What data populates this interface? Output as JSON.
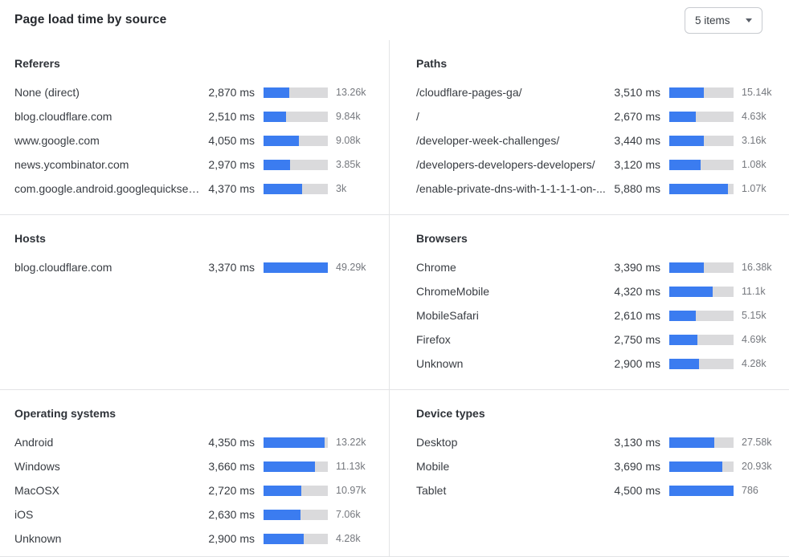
{
  "header": {
    "title": "Page load time by source"
  },
  "toolbar": {
    "items_dropdown": {
      "value": "5 items",
      "icon": "chevron-down-icon"
    }
  },
  "colors": {
    "bar_fill": "#3B7CF0",
    "bar_track": "#DADADC",
    "divider": "#E3E4E6",
    "text_primary": "#383C42",
    "text_secondary": "#75787E"
  },
  "chart_data": {
    "type": "bar",
    "orientation": "horizontal",
    "unit": "ms",
    "note": "Each panel lists sources with median page load time; bar fill = ms / scale_max_ms of that panel; right column is visit count.",
    "panels": [
      {
        "title": "Referers",
        "scale_max_ms": 7280,
        "rows": [
          {
            "label": "None (direct)",
            "ms": 2870,
            "ms_display": "2,870 ms",
            "count": "13.26k"
          },
          {
            "label": "blog.cloudflare.com",
            "ms": 2510,
            "ms_display": "2,510 ms",
            "count": "9.84k"
          },
          {
            "label": "www.google.com",
            "ms": 4050,
            "ms_display": "4,050 ms",
            "count": "9.08k"
          },
          {
            "label": "news.ycombinator.com",
            "ms": 2970,
            "ms_display": "2,970 ms",
            "count": "3.85k"
          },
          {
            "label": "com.google.android.googlequicksearc...",
            "ms": 4370,
            "ms_display": "4,370 ms",
            "count": "3k"
          }
        ]
      },
      {
        "title": "Paths",
        "scale_max_ms": 6460,
        "rows": [
          {
            "label": "/cloudflare-pages-ga/",
            "ms": 3510,
            "ms_display": "3,510 ms",
            "count": "15.14k"
          },
          {
            "label": "/",
            "ms": 2670,
            "ms_display": "2,670 ms",
            "count": "4.63k"
          },
          {
            "label": "/developer-week-challenges/",
            "ms": 3440,
            "ms_display": "3,440 ms",
            "count": "3.16k"
          },
          {
            "label": "/developers-developers-developers/",
            "ms": 3120,
            "ms_display": "3,120 ms",
            "count": "1.08k"
          },
          {
            "label": "/enable-private-dns-with-1-1-1-1-on-...",
            "ms": 5880,
            "ms_display": "5,880 ms",
            "count": "1.07k"
          }
        ]
      },
      {
        "title": "Hosts",
        "scale_max_ms": 3370,
        "rows": [
          {
            "label": "blog.cloudflare.com",
            "ms": 3370,
            "ms_display": "3,370 ms",
            "count": "49.29k"
          }
        ]
      },
      {
        "title": "Browsers",
        "scale_max_ms": 6350,
        "rows": [
          {
            "label": "Chrome",
            "ms": 3390,
            "ms_display": "3,390 ms",
            "count": "16.38k"
          },
          {
            "label": "ChromeMobile",
            "ms": 4320,
            "ms_display": "4,320 ms",
            "count": "11.1k"
          },
          {
            "label": "MobileSafari",
            "ms": 2610,
            "ms_display": "2,610 ms",
            "count": "5.15k"
          },
          {
            "label": "Firefox",
            "ms": 2750,
            "ms_display": "2,750 ms",
            "count": "4.69k"
          },
          {
            "label": "Unknown",
            "ms": 2900,
            "ms_display": "2,900 ms",
            "count": "4.28k"
          }
        ]
      },
      {
        "title": "Operating systems",
        "scale_max_ms": 4600,
        "rows": [
          {
            "label": "Android",
            "ms": 4350,
            "ms_display": "4,350 ms",
            "count": "13.22k"
          },
          {
            "label": "Windows",
            "ms": 3660,
            "ms_display": "3,660 ms",
            "count": "11.13k"
          },
          {
            "label": "MacOSX",
            "ms": 2720,
            "ms_display": "2,720 ms",
            "count": "10.97k"
          },
          {
            "label": "iOS",
            "ms": 2630,
            "ms_display": "2,630 ms",
            "count": "7.06k"
          },
          {
            "label": "Unknown",
            "ms": 2900,
            "ms_display": "2,900 ms",
            "count": "4.28k"
          }
        ]
      },
      {
        "title": "Device types",
        "scale_max_ms": 4500,
        "rows": [
          {
            "label": "Desktop",
            "ms": 3130,
            "ms_display": "3,130 ms",
            "count": "27.58k"
          },
          {
            "label": "Mobile",
            "ms": 3690,
            "ms_display": "3,690 ms",
            "count": "20.93k"
          },
          {
            "label": "Tablet",
            "ms": 4500,
            "ms_display": "4,500 ms",
            "count": "786"
          }
        ]
      }
    ]
  }
}
